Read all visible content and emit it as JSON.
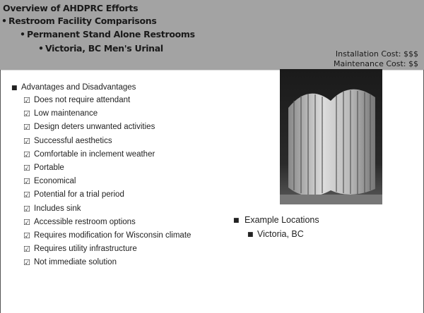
{
  "header": {
    "title_lines": [
      "Overview of AHDPRC Efforts",
      "Restroom Facility Comparisons",
      "Permanent Stand Alone Restrooms",
      "Victoria, BC Men's Urinal"
    ],
    "costs": [
      "Installation Cost: $$$",
      "Maintenance Cost: $$"
    ]
  },
  "list": {
    "heading": "Advantages and Disadvantages",
    "items": [
      "Does not require attendant",
      "Low maintenance",
      "Design deters unwanted activities",
      "Successful aesthetics",
      "Comfortable in inclement weather",
      "Portable",
      "Economical",
      "Potential for a trial period",
      "Includes sink",
      "Accessible restroom options",
      "Requires modification for Wisconsin climate",
      "Requires utility infrastructure",
      "Not immediate solution"
    ]
  },
  "locations": {
    "heading": "Example Locations",
    "items": [
      "Victoria, BC"
    ]
  }
}
